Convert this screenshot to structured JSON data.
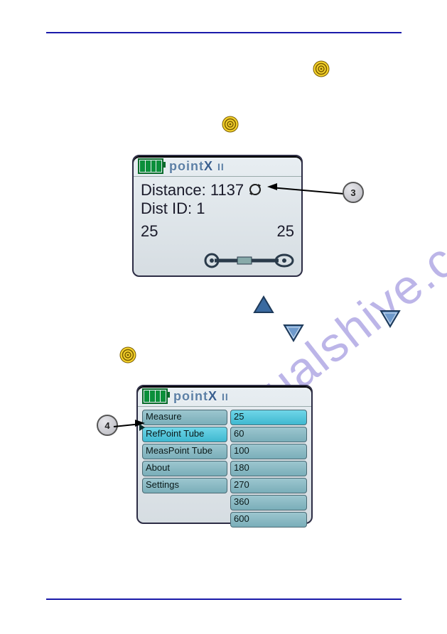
{
  "watermark": "manualshive.com",
  "colors": {
    "rule": "#1a1aaa",
    "lcd_bg_top": "#e8eef2",
    "lcd_bg_bot": "#d6dde2",
    "lcd_border": "#2c2c44",
    "battery_border": "#0a6b2b",
    "battery_cell": "#0a8f3a",
    "logo": "#5b7fa5",
    "menu_cell": "#8cbec8",
    "menu_cell_sel": "#4fc6dc",
    "badge_stroke": "#555555",
    "triangle": "#3a6aa0",
    "target_outer": "#d4b400",
    "target_ring": "#7a5c00"
  },
  "screen1": {
    "logo_text": "point",
    "logo_x": "X",
    "logo_ii": "II",
    "distance_label": "Distance:",
    "distance_value": "1137",
    "distid_label": "Dist ID:",
    "distid_value": "1",
    "left_num": "25",
    "right_num": "25"
  },
  "screen2": {
    "menu_left": [
      "Measure",
      "RefPoint Tube",
      "MeasPoint Tube",
      "About",
      "Settings"
    ],
    "menu_right": [
      "25",
      "60",
      "100",
      "180",
      "270",
      "360",
      "600"
    ],
    "selected_left_index": 1,
    "selected_right_index": 0
  },
  "callouts": {
    "c3": "3",
    "c4": "4"
  }
}
